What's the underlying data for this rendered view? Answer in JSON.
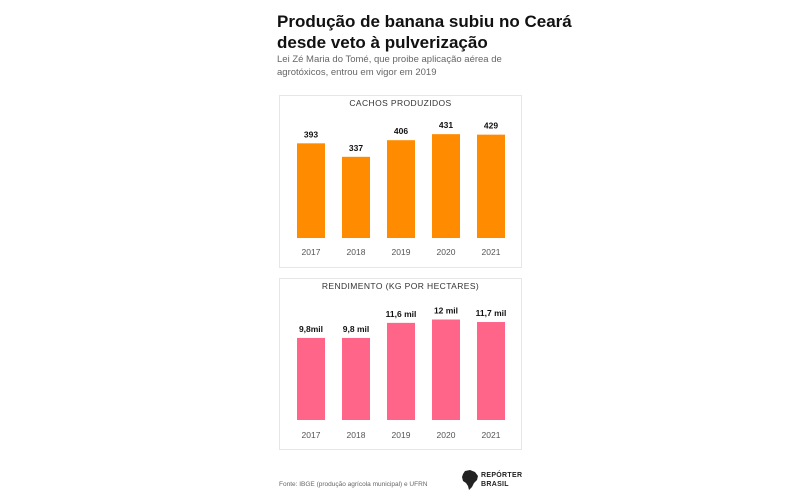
{
  "header": {
    "title": "Produção de banana subiu no Ceará desde veto à pulverização",
    "subtitle": "Lei Zé Maria do Tomé, que proibe aplicação aérea de agrotóxicos, entrou em vigor em 2019"
  },
  "footer": {
    "source": "Fonte: IBGE (produção agrícola municipal) e UFRN"
  },
  "logo": {
    "line1": "REPÓRTER",
    "line2": "BRASIL"
  },
  "colors": {
    "orange": "#FF8C00",
    "pink": "#FF6589"
  },
  "chart_data": [
    {
      "type": "bar",
      "title": "CACHOS PRODUZIDOS",
      "categories": [
        "2017",
        "2018",
        "2019",
        "2020",
        "2021"
      ],
      "values": [
        393,
        337,
        406,
        431,
        429
      ],
      "value_labels": [
        "393",
        "337",
        "406",
        "431",
        "429"
      ],
      "color": "#FF8C00",
      "ylim": [
        0,
        440
      ],
      "grid": false,
      "legend": "none"
    },
    {
      "type": "bar",
      "title": "RENDIMENTO (KG POR HECTARES)",
      "categories": [
        "2017",
        "2018",
        "2019",
        "2020",
        "2021"
      ],
      "values": [
        9800,
        9800,
        11600,
        12000,
        11700
      ],
      "value_labels": [
        "9,8mil",
        "9,8 mil",
        "11,6 mil",
        "12 mil",
        "11,7 mil"
      ],
      "color": "#FF6589",
      "ylim": [
        0,
        12300
      ],
      "grid": false,
      "legend": "none"
    }
  ]
}
